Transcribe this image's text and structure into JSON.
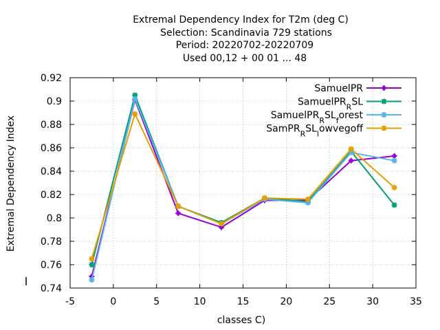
{
  "chart_data": {
    "type": "line",
    "title_lines": [
      "Extremal Dependency Index  for T2m (deg C)",
      "Selection: Scandinavia    729 stations",
      "Period: 20220702-20220709",
      "Used  00,12  + 00 01 ... 48"
    ],
    "xlabel": "classes C)",
    "ylabel": "Extremal Dependency Index",
    "xlim": [
      -5,
      35
    ],
    "ylim": [
      0.74,
      0.92
    ],
    "xticks": [
      -5,
      0,
      5,
      10,
      15,
      20,
      25,
      30,
      35
    ],
    "xtick_labels": [
      "-5",
      "0",
      "5",
      "10",
      "15",
      "20",
      "25",
      "30",
      "35"
    ],
    "yticks": [
      0.74,
      0.76,
      0.78,
      0.8,
      0.82,
      0.84,
      0.86,
      0.88,
      0.9,
      0.92
    ],
    "ytick_labels": [
      "0.74",
      "0.76",
      "0.78",
      "0.8",
      "0.82",
      "0.84",
      "0.86",
      "0.88",
      "0.9",
      "0.92"
    ],
    "grid": true,
    "legend_position": "top-right",
    "x": [
      -2.5,
      2.5,
      7.5,
      12.5,
      17.5,
      22.5,
      27.5,
      32.5
    ],
    "series": [
      {
        "name": "SamuelPR",
        "legend_parts": [
          {
            "text": "SamuelPR",
            "sub": false
          }
        ],
        "color": "#9400d3",
        "marker": "plus",
        "values": [
          0.75,
          0.901,
          0.804,
          0.792,
          0.815,
          0.815,
          0.849,
          0.853
        ]
      },
      {
        "name": "SamuelPR_RSL",
        "legend_parts": [
          {
            "text": "SamuelPR",
            "sub": false
          },
          {
            "text": "R",
            "sub": true
          },
          {
            "text": "SL",
            "sub": false
          }
        ],
        "color": "#009e73",
        "marker": "star",
        "values": [
          0.76,
          0.905,
          0.81,
          0.796,
          0.817,
          0.814,
          0.857,
          0.811
        ]
      },
      {
        "name": "SamuelPR_RSL_forest",
        "legend_parts": [
          {
            "text": "SamuelPR",
            "sub": false
          },
          {
            "text": "R",
            "sub": true
          },
          {
            "text": "SL",
            "sub": false
          },
          {
            "text": "f",
            "sub": true
          },
          {
            "text": "orest",
            "sub": false
          }
        ],
        "color": "#56b4e9",
        "marker": "star",
        "values": [
          0.747,
          0.902,
          0.81,
          0.795,
          0.816,
          0.813,
          0.856,
          0.849
        ]
      },
      {
        "name": "SamPR_RSL_lowvegoff",
        "legend_parts": [
          {
            "text": "SamPR",
            "sub": false
          },
          {
            "text": "R",
            "sub": true
          },
          {
            "text": "SL",
            "sub": false
          },
          {
            "text": "l",
            "sub": true
          },
          {
            "text": "owvegoff",
            "sub": false
          }
        ],
        "color": "#e69f00",
        "marker": "star",
        "values": [
          0.765,
          0.889,
          0.81,
          0.795,
          0.817,
          0.816,
          0.859,
          0.826
        ]
      }
    ]
  }
}
